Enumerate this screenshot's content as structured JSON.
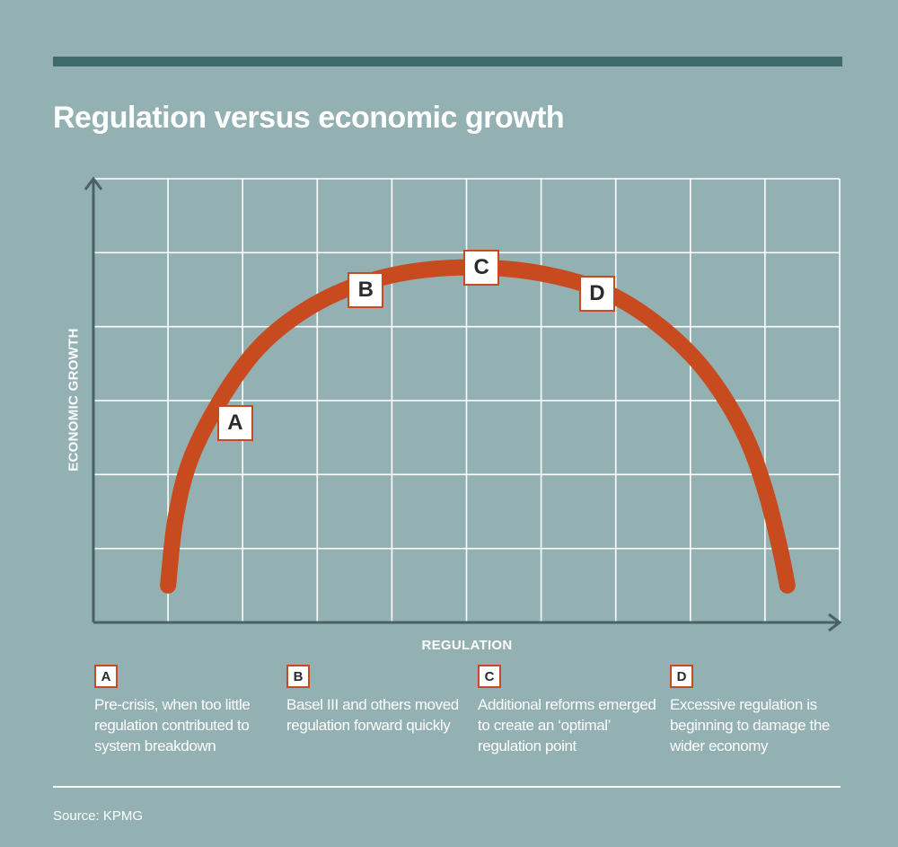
{
  "title": "Regulation versus economic growth",
  "chart_data": {
    "type": "line",
    "title": "Regulation versus economic growth",
    "xlabel": "REGULATION",
    "ylabel": "ECONOMIC GROWTH",
    "xlim": [
      0,
      10
    ],
    "ylim": [
      0,
      6
    ],
    "grid": true,
    "series": [
      {
        "name": "Growth curve",
        "color": "#c84a1f",
        "x": [
          1,
          1.1,
          1.3,
          1.7,
          2.2,
          2.8,
          3.5,
          4.3,
          5.2,
          6.1,
          6.9,
          7.6,
          8.2,
          8.7,
          9.0,
          9.2,
          9.3
        ],
        "y": [
          0.5,
          1.4,
          2.2,
          3.0,
          3.7,
          4.2,
          4.55,
          4.75,
          4.8,
          4.7,
          4.45,
          4.0,
          3.4,
          2.6,
          1.8,
          1.0,
          0.5
        ]
      }
    ],
    "annotations": [
      {
        "label": "A",
        "x": 1.9,
        "y": 2.7
      },
      {
        "label": "B",
        "x": 3.65,
        "y": 4.5
      },
      {
        "label": "C",
        "x": 5.2,
        "y": 4.8
      },
      {
        "label": "D",
        "x": 6.75,
        "y": 4.45
      }
    ]
  },
  "notes": [
    {
      "key": "A",
      "text": "Pre-crisis, when too little regulation contributed to system breakdown"
    },
    {
      "key": "B",
      "text": "Basel III and others moved regulation forward quickly"
    },
    {
      "key": "C",
      "text": "Additional reforms emerged to create an ‘optimal’ regulation point"
    },
    {
      "key": "D",
      "text": "Excessive regulation is beginning to damage the wider economy"
    }
  ],
  "source": "Source: KPMG",
  "colors": {
    "background": "#93b0b2",
    "rule": "#3f6a6c",
    "axis": "#4a6266",
    "grid": "#ffffff",
    "curve": "#c84a1f"
  }
}
